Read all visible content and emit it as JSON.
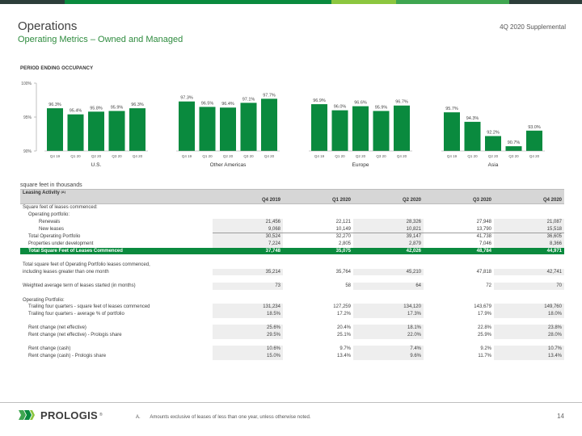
{
  "colors": {
    "accent_green": "#0a8a3e",
    "title_green": "#2e8b3e",
    "topbar": [
      "#2c3e3a",
      "#0a8a3e",
      "#8cc63f",
      "#3fa650",
      "#2c3e3a"
    ]
  },
  "header": {
    "title": "Operations",
    "subtitle": "Operating Metrics – Owned and Managed",
    "supplemental": "4Q 2020 Supplemental"
  },
  "chart_heading": "PERIOD ENDING OCCUPANCY",
  "chart_data": {
    "type": "bar",
    "title": "PERIOD ENDING OCCUPANCY",
    "ylim": [
      90.0,
      100.0
    ],
    "yticks": [
      "100%",
      "95%",
      "90%"
    ],
    "grid": false,
    "bar_color": "#0a8a3e",
    "groups": [
      {
        "name": "U.S.",
        "categories": [
          "Q4 19",
          "Q1 20",
          "Q2 20",
          "Q3 20",
          "Q4 20"
        ],
        "values": [
          96.3,
          95.4,
          95.8,
          95.9,
          96.3
        ],
        "labels": [
          "96.3%",
          "95.4%",
          "95.8%",
          "95.9%",
          "96.3%"
        ]
      },
      {
        "name": "Other Americas",
        "categories": [
          "Q4 19",
          "Q1 20",
          "Q2 20",
          "Q3 20",
          "Q4 20"
        ],
        "values": [
          97.3,
          96.5,
          96.4,
          97.1,
          97.7
        ],
        "labels": [
          "97.3%",
          "96.5%",
          "96.4%",
          "97.1%",
          "97.7%"
        ]
      },
      {
        "name": "Europe",
        "categories": [
          "Q4 19",
          "Q1 20",
          "Q2 20",
          "Q3 20",
          "Q4 20"
        ],
        "values": [
          96.9,
          96.0,
          96.6,
          95.9,
          96.7
        ],
        "labels": [
          "96.9%",
          "96.0%",
          "96.6%",
          "95.9%",
          "96.7%"
        ]
      },
      {
        "name": "Asia",
        "categories": [
          "Q4 19",
          "Q1 20",
          "Q2 20",
          "Q3 20",
          "Q4 20"
        ],
        "values": [
          95.7,
          94.3,
          92.2,
          90.7,
          93.0
        ],
        "labels": [
          "95.7%",
          "94.3%",
          "92.2%",
          "90.7%",
          "93.0%"
        ]
      }
    ]
  },
  "table": {
    "units_note": "square feet in thousands",
    "section_title": "Leasing Activity",
    "section_sup": "(A)",
    "columns": [
      "Q4 2019",
      "Q1 2020",
      "Q2 2020",
      "Q3 2020",
      "Q4 2020"
    ],
    "rows": {
      "commenced_header": "Square feet of leases commenced:",
      "operating_header": "Operating portfolio:",
      "renewals": {
        "label": "Renewals",
        "values": [
          "21,456",
          "22,121",
          "28,326",
          "27,948",
          "21,087"
        ]
      },
      "new_leases": {
        "label": "New leases",
        "values": [
          "9,068",
          "10,149",
          "10,821",
          "13,790",
          "15,518"
        ]
      },
      "total_operating": {
        "label": "Total Operating Portfolio",
        "values": [
          "30,524",
          "32,270",
          "39,147",
          "41,738",
          "36,605"
        ]
      },
      "under_development": {
        "label": "Properties under development",
        "values": [
          "7,224",
          "2,805",
          "2,879",
          "7,046",
          "8,366"
        ]
      },
      "total_commenced": {
        "label": "Total Square Feet of Leases Commenced",
        "values": [
          "37,748",
          "35,075",
          "42,026",
          "48,784",
          "44,971"
        ]
      },
      "greater_one_month": {
        "label_line1": "Total square feet of Operating Portfolio leases commenced,",
        "label_line2": "including leases greater than one month",
        "values": [
          "35,214",
          "35,764",
          "45,210",
          "47,818",
          "42,741"
        ]
      },
      "weighted_term": {
        "label": "Weighted average term of leases started (in months)",
        "values": [
          "73",
          "58",
          "64",
          "72",
          "70"
        ]
      },
      "operating_portfolio_header": "Operating Portfolio:",
      "trailing_sqft": {
        "label": "Trailing four quarters - square feet of leases commenced",
        "values": [
          "131,234",
          "127,259",
          "134,120",
          "143,679",
          "149,760"
        ]
      },
      "trailing_pct": {
        "label": "Trailing four quarters - average % of portfolio",
        "values": [
          "18.5%",
          "17.2%",
          "17.3%",
          "17.9%",
          "18.0%"
        ]
      },
      "rent_net": {
        "label": "Rent change (net effective)",
        "values": [
          "25.6%",
          "20.4%",
          "18.1%",
          "22.8%",
          "23.8%"
        ]
      },
      "rent_net_share": {
        "label": "Rent change (net effective) - Prologis share",
        "values": [
          "29.5%",
          "25.1%",
          "22.0%",
          "25.9%",
          "28.0%"
        ]
      },
      "rent_cash": {
        "label": "Rent change (cash)",
        "values": [
          "10.6%",
          "9.7%",
          "7.4%",
          "9.2%",
          "10.7%"
        ]
      },
      "rent_cash_share": {
        "label": "Rent change (cash) - Prologis share",
        "values": [
          "15.0%",
          "13.4%",
          "9.6%",
          "11.7%",
          "13.4%"
        ]
      }
    }
  },
  "footer": {
    "logo_text": "PROLOGIS",
    "logo_mark": "®",
    "footnote_marker": "A.",
    "footnote_text": "Amounts exclusive of leases of less than one year, unless otherwise noted.",
    "page_number": "14"
  }
}
